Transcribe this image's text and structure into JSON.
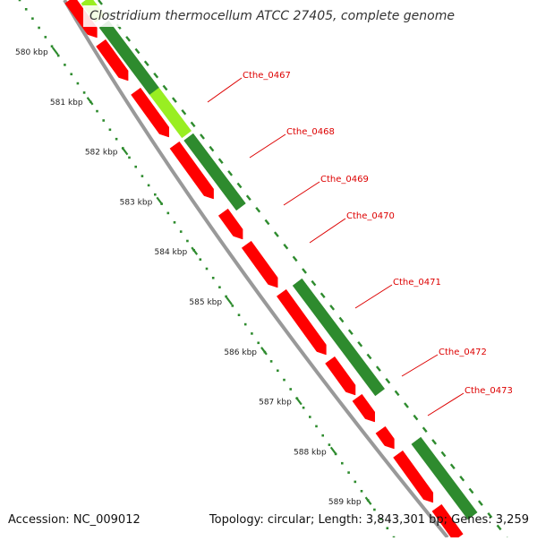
{
  "title": "Clostridium thermocellum ATCC 27405, complete genome",
  "accession": "Accession: NC_009012",
  "topology": "Topology: circular; Length: 3,843,301 bp; Genes: 3,259",
  "colors": {
    "reverse_cds": "#ff0000",
    "forward_cds": "#2e8b2e",
    "forward_cds_light": "#99ee22",
    "ruler": "#2e8b2e",
    "backbone": "#999999",
    "gene_label": "#dd0000"
  },
  "ruler_ticks": [
    {
      "label": "580 kbp"
    },
    {
      "label": "581 kbp"
    },
    {
      "label": "582 kbp"
    },
    {
      "label": "583 kbp"
    },
    {
      "label": "584 kbp"
    },
    {
      "label": "585 kbp"
    },
    {
      "label": "586 kbp"
    },
    {
      "label": "587 kbp"
    },
    {
      "label": "588 kbp"
    },
    {
      "label": "589 kbp"
    }
  ],
  "gene_labels": [
    {
      "label": "Cthe_0467"
    },
    {
      "label": "Cthe_0468"
    },
    {
      "label": "Cthe_0469"
    },
    {
      "label": "Cthe_0470"
    },
    {
      "label": "Cthe_0471"
    },
    {
      "label": "Cthe_0472"
    },
    {
      "label": "Cthe_0473"
    }
  ]
}
